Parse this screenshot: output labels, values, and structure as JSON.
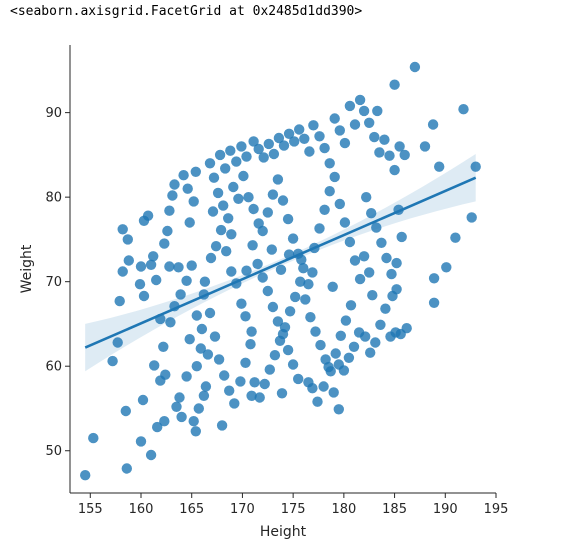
{
  "output_text": "<seaborn.axisgrid.FacetGrid at 0x2485d1dd390>",
  "chart_data": {
    "type": "scatter",
    "xlabel": "Height",
    "ylabel": "Weight",
    "xlim": [
      153,
      195
    ],
    "ylim": [
      45,
      98
    ],
    "xticks": [
      155,
      160,
      165,
      170,
      175,
      180,
      185,
      190,
      195
    ],
    "yticks": [
      50,
      60,
      70,
      80,
      90
    ],
    "point_color": "#1f77b4",
    "regression": {
      "x": [
        154.5,
        193
      ],
      "y": [
        62.2,
        82.3
      ],
      "ci_half_width_ends": 2.8,
      "ci_half_width_mid": 0.4,
      "color": "#1f77b4"
    },
    "points": [
      [
        154.5,
        47.1
      ],
      [
        155.3,
        51.5
      ],
      [
        158.6,
        47.9
      ],
      [
        158.5,
        54.7
      ],
      [
        160.0,
        51.1
      ],
      [
        160.2,
        56.0
      ],
      [
        161.0,
        49.5
      ],
      [
        161.6,
        52.8
      ],
      [
        162.3,
        53.5
      ],
      [
        157.2,
        60.6
      ],
      [
        157.7,
        62.8
      ],
      [
        157.9,
        67.7
      ],
      [
        158.2,
        71.2
      ],
      [
        158.8,
        72.5
      ],
      [
        158.2,
        76.2
      ],
      [
        158.7,
        75.0
      ],
      [
        160.0,
        71.8
      ],
      [
        160.3,
        77.2
      ],
      [
        160.7,
        77.8
      ],
      [
        160.3,
        68.3
      ],
      [
        159.9,
        69.7
      ],
      [
        161.0,
        72.0
      ],
      [
        161.2,
        73.0
      ],
      [
        161.5,
        70.2
      ],
      [
        161.9,
        65.6
      ],
      [
        162.2,
        62.3
      ],
      [
        161.9,
        58.3
      ],
      [
        162.4,
        59.0
      ],
      [
        161.3,
        60.1
      ],
      [
        163.5,
        55.2
      ],
      [
        163.8,
        56.3
      ],
      [
        164.0,
        54.0
      ],
      [
        164.5,
        58.8
      ],
      [
        165.4,
        52.3
      ],
      [
        165.2,
        53.5
      ],
      [
        165.7,
        55.0
      ],
      [
        166.2,
        56.5
      ],
      [
        165.5,
        60.0
      ],
      [
        166.4,
        57.6
      ],
      [
        162.3,
        74.5
      ],
      [
        162.6,
        76.0
      ],
      [
        162.8,
        78.4
      ],
      [
        163.1,
        80.2
      ],
      [
        163.3,
        81.5
      ],
      [
        164.2,
        82.6
      ],
      [
        164.6,
        81.0
      ],
      [
        165.4,
        83.0
      ],
      [
        164.8,
        77.0
      ],
      [
        165.2,
        79.5
      ],
      [
        162.9,
        65.2
      ],
      [
        163.3,
        67.1
      ],
      [
        163.9,
        68.5
      ],
      [
        164.5,
        70.1
      ],
      [
        165.0,
        71.9
      ],
      [
        165.5,
        66.0
      ],
      [
        166.0,
        64.4
      ],
      [
        164.8,
        63.2
      ],
      [
        165.9,
        62.1
      ],
      [
        166.6,
        61.4
      ],
      [
        166.8,
        84.0
      ],
      [
        167.2,
        82.3
      ],
      [
        167.8,
        85.0
      ],
      [
        168.3,
        83.4
      ],
      [
        168.8,
        85.5
      ],
      [
        169.4,
        84.2
      ],
      [
        169.9,
        86.0
      ],
      [
        170.4,
        84.8
      ],
      [
        171.1,
        86.6
      ],
      [
        171.6,
        85.7
      ],
      [
        166.3,
        70.0
      ],
      [
        166.9,
        72.8
      ],
      [
        167.4,
        74.2
      ],
      [
        167.9,
        76.1
      ],
      [
        168.4,
        73.6
      ],
      [
        168.9,
        71.2
      ],
      [
        169.4,
        69.8
      ],
      [
        169.9,
        67.4
      ],
      [
        170.3,
        65.9
      ],
      [
        170.9,
        64.1
      ],
      [
        166.2,
        68.5
      ],
      [
        166.8,
        66.3
      ],
      [
        167.3,
        63.5
      ],
      [
        167.7,
        60.8
      ],
      [
        168.2,
        58.9
      ],
      [
        168.7,
        57.1
      ],
      [
        169.2,
        55.6
      ],
      [
        169.8,
        58.2
      ],
      [
        170.3,
        60.4
      ],
      [
        170.8,
        62.6
      ],
      [
        167.1,
        78.3
      ],
      [
        167.6,
        80.5
      ],
      [
        168.1,
        79.0
      ],
      [
        168.6,
        77.5
      ],
      [
        169.1,
        81.2
      ],
      [
        169.6,
        79.8
      ],
      [
        170.1,
        82.5
      ],
      [
        170.6,
        80.0
      ],
      [
        171.1,
        78.6
      ],
      [
        171.6,
        76.9
      ],
      [
        171.0,
        74.3
      ],
      [
        171.5,
        72.1
      ],
      [
        172.0,
        70.5
      ],
      [
        172.5,
        68.9
      ],
      [
        173.0,
        67.0
      ],
      [
        173.5,
        65.3
      ],
      [
        174.0,
        63.8
      ],
      [
        174.5,
        61.9
      ],
      [
        175.0,
        60.2
      ],
      [
        175.5,
        58.5
      ],
      [
        171.2,
        58.1
      ],
      [
        171.7,
        56.3
      ],
      [
        172.2,
        57.9
      ],
      [
        172.7,
        59.6
      ],
      [
        173.2,
        61.3
      ],
      [
        173.7,
        63.0
      ],
      [
        174.2,
        64.6
      ],
      [
        174.7,
        66.5
      ],
      [
        175.2,
        68.2
      ],
      [
        175.7,
        70.0
      ],
      [
        172.1,
        84.7
      ],
      [
        172.6,
        86.3
      ],
      [
        173.1,
        85.1
      ],
      [
        173.6,
        87.0
      ],
      [
        174.1,
        86.1
      ],
      [
        174.6,
        87.5
      ],
      [
        175.1,
        86.6
      ],
      [
        175.6,
        88.0
      ],
      [
        176.1,
        86.9
      ],
      [
        176.6,
        85.4
      ],
      [
        172.0,
        76.0
      ],
      [
        172.5,
        78.2
      ],
      [
        173.0,
        80.3
      ],
      [
        173.5,
        82.1
      ],
      [
        174.0,
        79.6
      ],
      [
        174.5,
        77.4
      ],
      [
        175.0,
        75.1
      ],
      [
        175.5,
        73.3
      ],
      [
        176.0,
        71.6
      ],
      [
        176.5,
        69.7
      ],
      [
        176.2,
        67.9
      ],
      [
        176.7,
        65.8
      ],
      [
        177.2,
        64.1
      ],
      [
        177.7,
        62.5
      ],
      [
        178.2,
        60.8
      ],
      [
        178.7,
        59.4
      ],
      [
        179.2,
        61.5
      ],
      [
        179.7,
        63.6
      ],
      [
        180.2,
        65.4
      ],
      [
        180.7,
        67.2
      ],
      [
        177.0,
        88.5
      ],
      [
        177.6,
        87.2
      ],
      [
        178.1,
        85.8
      ],
      [
        178.6,
        84.0
      ],
      [
        179.1,
        89.3
      ],
      [
        179.6,
        87.9
      ],
      [
        180.1,
        86.4
      ],
      [
        180.6,
        90.8
      ],
      [
        181.1,
        88.6
      ],
      [
        181.6,
        91.5
      ],
      [
        177.1,
        74.0
      ],
      [
        177.6,
        76.3
      ],
      [
        178.1,
        78.5
      ],
      [
        178.6,
        80.7
      ],
      [
        179.1,
        82.4
      ],
      [
        179.6,
        79.2
      ],
      [
        180.1,
        77.0
      ],
      [
        180.6,
        74.7
      ],
      [
        181.1,
        72.5
      ],
      [
        181.6,
        70.3
      ],
      [
        176.9,
        57.4
      ],
      [
        177.4,
        55.8
      ],
      [
        178.0,
        57.6
      ],
      [
        178.5,
        59.9
      ],
      [
        179.0,
        56.9
      ],
      [
        179.5,
        60.2
      ],
      [
        180.0,
        59.5
      ],
      [
        180.5,
        61.0
      ],
      [
        181.0,
        62.3
      ],
      [
        181.5,
        64.0
      ],
      [
        182.0,
        90.2
      ],
      [
        182.5,
        88.8
      ],
      [
        183.0,
        87.1
      ],
      [
        183.5,
        85.3
      ],
      [
        184.0,
        86.8
      ],
      [
        184.5,
        84.9
      ],
      [
        185.0,
        83.2
      ],
      [
        185.5,
        86.0
      ],
      [
        186.0,
        85.0
      ],
      [
        183.3,
        90.2
      ],
      [
        182.2,
        80.0
      ],
      [
        182.7,
        78.1
      ],
      [
        183.2,
        76.4
      ],
      [
        183.7,
        74.6
      ],
      [
        184.2,
        72.8
      ],
      [
        184.7,
        70.9
      ],
      [
        185.2,
        69.1
      ],
      [
        185.7,
        75.3
      ],
      [
        182.0,
        73.0
      ],
      [
        182.5,
        71.1
      ],
      [
        182.1,
        63.5
      ],
      [
        182.6,
        61.6
      ],
      [
        183.1,
        62.8
      ],
      [
        183.6,
        64.9
      ],
      [
        184.1,
        66.8
      ],
      [
        184.6,
        63.5
      ],
      [
        185.1,
        64.0
      ],
      [
        185.6,
        63.8
      ],
      [
        186.2,
        64.5
      ],
      [
        182.8,
        68.4
      ],
      [
        188.0,
        86.0
      ],
      [
        188.8,
        88.6
      ],
      [
        189.4,
        83.6
      ],
      [
        185.0,
        93.3
      ],
      [
        187.0,
        95.4
      ],
      [
        191.8,
        90.4
      ],
      [
        193.0,
        83.6
      ],
      [
        192.6,
        77.6
      ],
      [
        191.0,
        75.2
      ],
      [
        190.1,
        71.7
      ],
      [
        188.9,
        70.4
      ],
      [
        188.9,
        67.5
      ],
      [
        185.4,
        78.5
      ],
      [
        185.2,
        72.2
      ],
      [
        184.8,
        68.3
      ],
      [
        163.7,
        71.7
      ],
      [
        162.8,
        71.8
      ],
      [
        168.0,
        53.0
      ],
      [
        170.9,
        56.5
      ],
      [
        173.9,
        56.8
      ],
      [
        176.5,
        58.1
      ],
      [
        179.5,
        54.9
      ],
      [
        174.6,
        73.2
      ],
      [
        175.8,
        72.6
      ],
      [
        173.8,
        71.4
      ],
      [
        176.9,
        71.1
      ],
      [
        172.9,
        73.8
      ],
      [
        170.4,
        71.3
      ],
      [
        178.9,
        69.4
      ],
      [
        168.9,
        75.6
      ]
    ]
  }
}
